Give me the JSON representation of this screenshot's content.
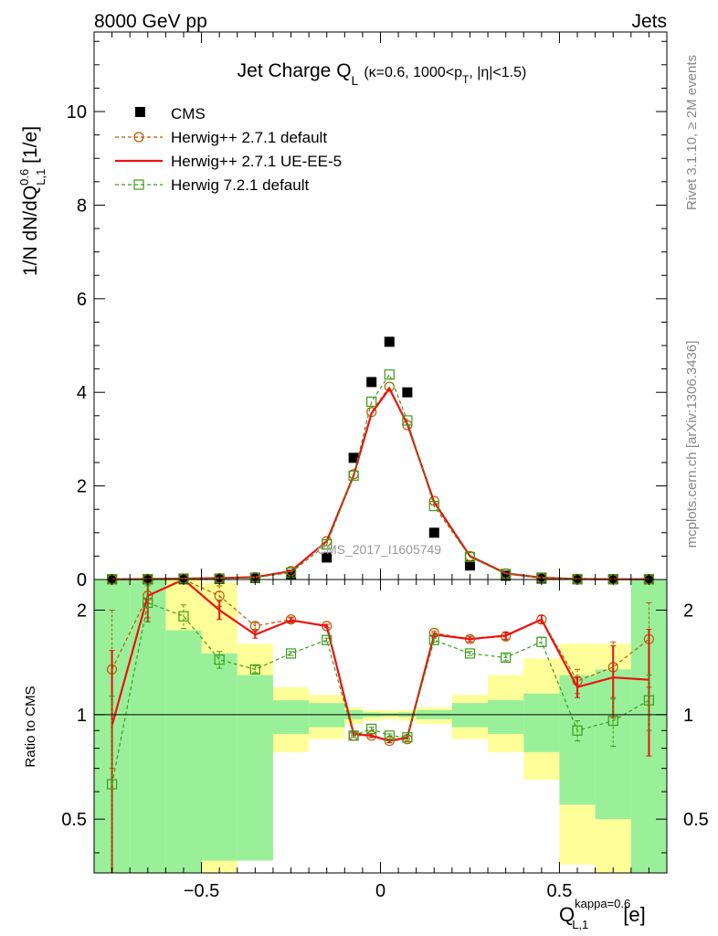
{
  "header": {
    "left": "8000 GeV pp",
    "right": "Jets"
  },
  "side": {
    "rivet": "Rivet 3.1.10, ≥ 2M events",
    "mcplots": "mcplots.cern.ch [arXiv:1306.3436]"
  },
  "analysis_tag": "CMS_2017_I1605749",
  "colors": {
    "cms": "#000000",
    "herwig_default": "#b85c00",
    "herwig_ueee5": "#ee1111",
    "herwig72": "#3c9b18",
    "band_yellow": "#ffff99",
    "band_green": "#99f099"
  },
  "chart_data": [
    {
      "type": "scatter",
      "panel": "main",
      "title_main": "Jet Charge Q",
      "title_sub": "L",
      "title_rest": "(κ=0.6, 1000<p",
      "title_sub2": "T",
      "title_end": ", |η|<1.5)",
      "ylabel_pre": "1/N dN/dQ",
      "ylabel_sup": "0.6",
      "ylabel_sub": "L,1",
      "ylabel_post": " [1/e]",
      "xlim": [
        -0.8,
        0.8
      ],
      "ylim": [
        0,
        11.7
      ],
      "yticks": [
        0,
        2,
        4,
        6,
        8,
        10
      ],
      "ytick_labels": [
        "0",
        "2",
        "4",
        "6",
        "8",
        "10"
      ],
      "legend_position": "top-left",
      "series": [
        {
          "name": "CMS",
          "style": "marker",
          "x": [
            -0.75,
            -0.65,
            -0.55,
            -0.45,
            -0.35,
            -0.25,
            -0.15,
            -0.075,
            -0.025,
            0.025,
            0.075,
            0.15,
            0.25,
            0.35,
            0.45,
            0.55,
            0.65,
            0.75
          ],
          "y": [
            0.005,
            0.005,
            0.005,
            0.01,
            0.03,
            0.1,
            0.47,
            2.6,
            4.22,
            5.08,
            4.0,
            1.0,
            0.3,
            0.08,
            0.02,
            0.005,
            0.005,
            0.005
          ]
        },
        {
          "name": "Herwig++ 2.7.1 default",
          "style": "dashed-circle",
          "x": [
            -0.75,
            -0.65,
            -0.55,
            -0.45,
            -0.35,
            -0.25,
            -0.15,
            -0.075,
            -0.025,
            0.025,
            0.075,
            0.15,
            0.25,
            0.35,
            0.45,
            0.55,
            0.65,
            0.75
          ],
          "y": [
            0.005,
            0.01,
            0.02,
            0.03,
            0.05,
            0.18,
            0.82,
            2.25,
            3.58,
            4.12,
            3.3,
            1.68,
            0.5,
            0.13,
            0.04,
            0.01,
            0.005,
            0.005
          ]
        },
        {
          "name": "Herwig++ 2.7.1 UE-EE-5",
          "style": "solid",
          "x": [
            -0.75,
            -0.65,
            -0.55,
            -0.45,
            -0.35,
            -0.25,
            -0.15,
            -0.075,
            -0.025,
            0.025,
            0.075,
            0.15,
            0.25,
            0.35,
            0.45,
            0.55,
            0.65,
            0.75
          ],
          "y": [
            0.005,
            0.01,
            0.02,
            0.03,
            0.05,
            0.18,
            0.82,
            2.22,
            3.55,
            4.08,
            3.32,
            1.65,
            0.5,
            0.13,
            0.04,
            0.01,
            0.005,
            0.005
          ]
        },
        {
          "name": "Herwig 7.2.1 default",
          "style": "dashed-square",
          "x": [
            -0.75,
            -0.65,
            -0.55,
            -0.45,
            -0.35,
            -0.25,
            -0.15,
            -0.075,
            -0.025,
            0.025,
            0.075,
            0.15,
            0.25,
            0.35,
            0.45,
            0.55,
            0.65,
            0.75
          ],
          "y": [
            0.005,
            0.01,
            0.02,
            0.02,
            0.04,
            0.15,
            0.75,
            2.22,
            3.8,
            4.38,
            3.4,
            1.57,
            0.48,
            0.12,
            0.04,
            0.01,
            0.005,
            0.005
          ]
        }
      ]
    },
    {
      "type": "line",
      "panel": "ratio",
      "ylabel": "Ratio to CMS",
      "xlabel_main": "Q",
      "xlabel_sup": "kappa=0.6",
      "xlabel_sub": "L,1",
      "xlabel_unit": "[e]",
      "scale": "log",
      "xlim": [
        -0.8,
        0.8
      ],
      "ylim": [
        0.35,
        2.45
      ],
      "yticks": [
        0.5,
        1,
        2
      ],
      "ytick_labels": [
        "0.5",
        "1",
        "2"
      ],
      "xticks": [
        -0.5,
        0,
        0.5
      ],
      "xtick_labels": [
        "−0.5",
        "0",
        "0.5"
      ],
      "bands": {
        "edges": [
          -0.8,
          -0.7,
          -0.6,
          -0.5,
          -0.4,
          -0.3,
          -0.2,
          -0.1,
          -0.05,
          0,
          0.05,
          0.1,
          0.2,
          0.3,
          0.4,
          0.5,
          0.6,
          0.7,
          0.8
        ],
        "yellow_lo": [
          0.35,
          0.35,
          0.35,
          0.35,
          0.65,
          0.78,
          0.85,
          0.94,
          0.96,
          0.97,
          0.96,
          0.94,
          0.85,
          0.78,
          0.65,
          0.37,
          0.35,
          0.35
        ],
        "yellow_hi": [
          2.45,
          2.45,
          2.45,
          2.4,
          1.6,
          1.2,
          1.14,
          1.05,
          1.03,
          1.03,
          1.03,
          1.05,
          1.14,
          1.3,
          1.45,
          1.6,
          1.6,
          2.45
        ],
        "green_lo": [
          0.35,
          0.35,
          0.35,
          0.38,
          0.38,
          0.88,
          0.92,
          0.97,
          0.985,
          0.99,
          0.985,
          0.97,
          0.92,
          0.88,
          0.78,
          0.55,
          0.5,
          0.35
        ],
        "green_hi": [
          2.45,
          2.45,
          1.75,
          1.5,
          1.3,
          1.1,
          1.08,
          1.03,
          1.015,
          1.01,
          1.015,
          1.03,
          1.08,
          1.1,
          1.15,
          1.3,
          1.35,
          2.45
        ]
      },
      "series": [
        {
          "name": "Herwig++ 2.7.1 default",
          "style": "dashed-circle",
          "x": [
            -0.75,
            -0.65,
            -0.55,
            -0.45,
            -0.35,
            -0.25,
            -0.15,
            -0.075,
            -0.025,
            0.025,
            0.075,
            0.15,
            0.25,
            0.35,
            0.45,
            0.55,
            0.65,
            0.75
          ],
          "y": [
            1.35,
            2.2,
            2.6,
            2.2,
            1.8,
            1.88,
            1.8,
            0.87,
            0.87,
            0.84,
            0.85,
            1.72,
            1.65,
            1.68,
            1.88,
            1.25,
            1.37,
            1.65
          ],
          "err": [
            0.65,
            0.3,
            0.2,
            0.15,
            0.04,
            0.03,
            0.02,
            0.01,
            0.01,
            0.01,
            0.01,
            0.02,
            0.03,
            0.04,
            0.05,
            0.1,
            0.25,
            0.45
          ]
        },
        {
          "name": "Herwig++ 2.7.1 UE-EE-5",
          "style": "solid",
          "x": [
            -0.75,
            -0.65,
            -0.55,
            -0.45,
            -0.35,
            -0.25,
            -0.15,
            -0.075,
            -0.025,
            0.025,
            0.075,
            0.15,
            0.25,
            0.35,
            0.45,
            0.55,
            0.65,
            0.75
          ],
          "y": [
            0.93,
            2.2,
            2.6,
            2.0,
            1.7,
            1.87,
            1.8,
            0.88,
            0.87,
            0.84,
            0.86,
            1.7,
            1.65,
            1.69,
            1.88,
            1.2,
            1.28,
            1.26
          ],
          "err": [
            0.6,
            0.35,
            0.2,
            0.12,
            0.04,
            0.03,
            0.02,
            0.01,
            0.01,
            0.01,
            0.01,
            0.02,
            0.03,
            0.04,
            0.05,
            0.08,
            0.3,
            0.5
          ]
        },
        {
          "name": "Herwig 7.2.1 default",
          "style": "dashed-square",
          "x": [
            -0.75,
            -0.65,
            -0.55,
            -0.45,
            -0.35,
            -0.25,
            -0.15,
            -0.075,
            -0.025,
            0.025,
            0.075,
            0.15,
            0.25,
            0.35,
            0.45,
            0.55,
            0.65,
            0.75
          ],
          "y": [
            0.63,
            2.1,
            1.92,
            1.44,
            1.35,
            1.5,
            1.64,
            0.87,
            0.91,
            0.87,
            0.86,
            1.64,
            1.5,
            1.46,
            1.62,
            0.9,
            0.96,
            1.1
          ],
          "err": [
            0.5,
            0.25,
            0.15,
            0.08,
            0.03,
            0.02,
            0.02,
            0.01,
            0.01,
            0.01,
            0.01,
            0.02,
            0.02,
            0.03,
            0.05,
            0.06,
            0.15,
            0.2
          ]
        }
      ]
    }
  ]
}
